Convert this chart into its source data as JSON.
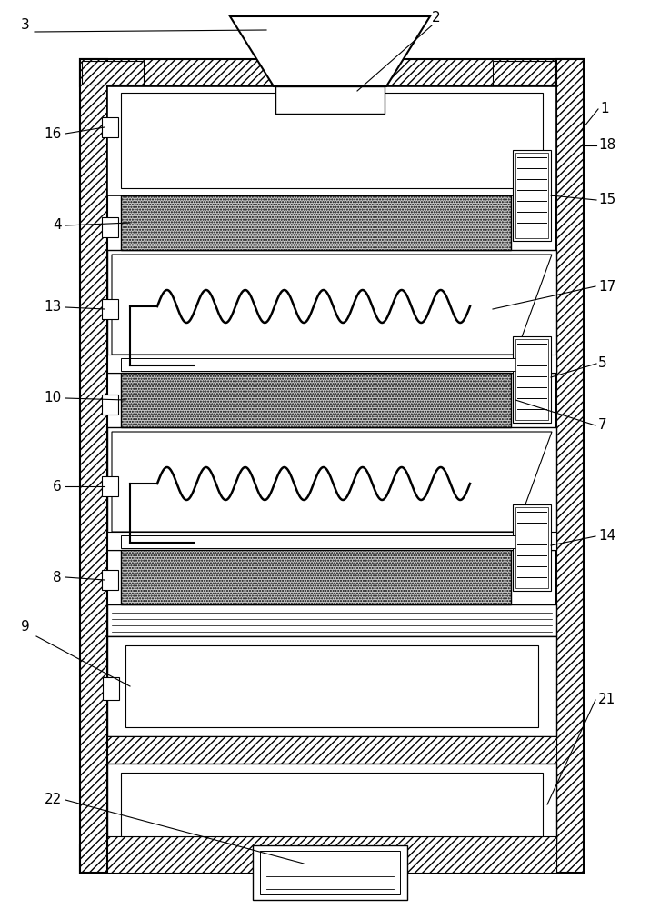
{
  "fig_width": 7.26,
  "fig_height": 10.0,
  "dpi": 100,
  "bg_color": "#ffffff",
  "line_color": "#000000"
}
